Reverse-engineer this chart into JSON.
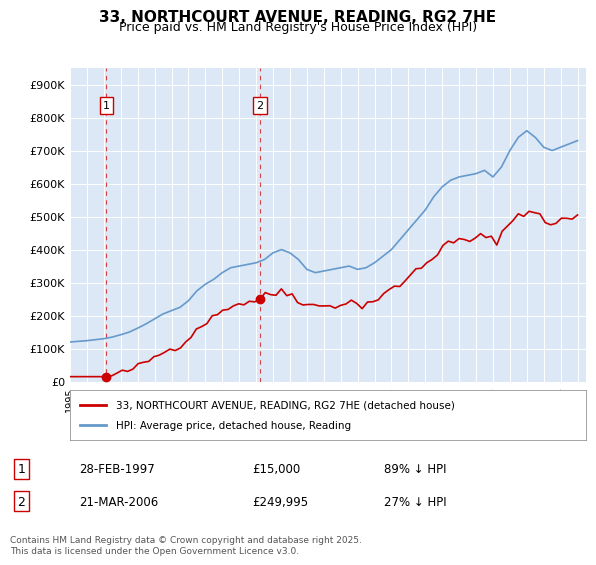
{
  "title": "33, NORTHCOURT AVENUE, READING, RG2 7HE",
  "subtitle": "Price paid vs. HM Land Registry's House Price Index (HPI)",
  "ylabel": "",
  "background_color": "#e8f0f8",
  "plot_bg_color": "#dce8f5",
  "red_color": "#cc0000",
  "blue_color": "#6699cc",
  "ylim": [
    0,
    950000
  ],
  "yticks": [
    0,
    100000,
    200000,
    300000,
    400000,
    500000,
    600000,
    700000,
    800000,
    900000
  ],
  "ytick_labels": [
    "£0",
    "£100K",
    "£200K",
    "£300K",
    "£400K",
    "£500K",
    "£600K",
    "£700K",
    "£800K",
    "£900K"
  ],
  "transactions": [
    {
      "date": "28-FEB-1997",
      "year": 1997.15,
      "price": 15000,
      "label": "1",
      "pct": "89% ↓ HPI"
    },
    {
      "date": "21-MAR-2006",
      "year": 2006.22,
      "price": 249995,
      "label": "2",
      "pct": "27% ↓ HPI"
    }
  ],
  "legend_line1": "33, NORTHCOURT AVENUE, READING, RG2 7HE (detached house)",
  "legend_line2": "HPI: Average price, detached house, Reading",
  "footer": "Contains HM Land Registry data © Crown copyright and database right 2025.\nThis data is licensed under the Open Government Licence v3.0.",
  "xmin": 1995,
  "xmax": 2025.5
}
